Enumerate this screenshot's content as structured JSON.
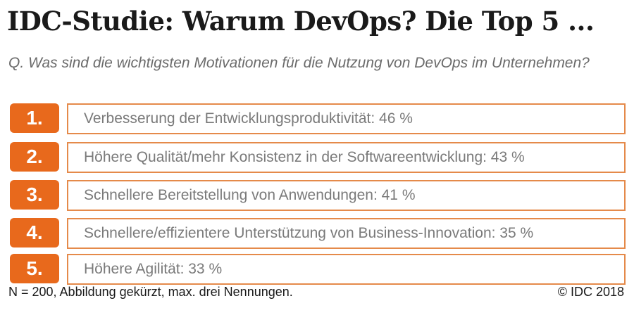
{
  "title": "IDC-Studie: Warum DevOps? Die Top 5 ...",
  "question": "Q. Was sind die wichtigsten Motivationen für die Nutzung von DevOps im Unternehmen?",
  "chart_data": {
    "type": "table",
    "title": "IDC-Studie: Warum DevOps? Die Top 5 ...",
    "rows": [
      {
        "rank": "1.",
        "label": "Verbesserung der Entwicklungsproduktivität: 46 %",
        "value": 46
      },
      {
        "rank": "2.",
        "label": "Höhere Qualität/mehr Konsistenz in der Softwareentwicklung: 43 %",
        "value": 43
      },
      {
        "rank": "3.",
        "label": "Schnellere Bereitstellung von Anwendungen: 41 %",
        "value": 41
      },
      {
        "rank": "4.",
        "label": "Schnellere/effizientere Unterstützung von Business-Innovation: 35 %",
        "value": 35
      },
      {
        "rank": "5.",
        "label": "Höhere Agilität: 33 %",
        "value": 33
      }
    ]
  },
  "footer": {
    "note": "N = 200, Abbildung gekürzt, max. drei Nennungen.",
    "copyright": "© IDC 2018"
  },
  "colors": {
    "accent": "#e8691c",
    "text": "#7a7a7a"
  }
}
